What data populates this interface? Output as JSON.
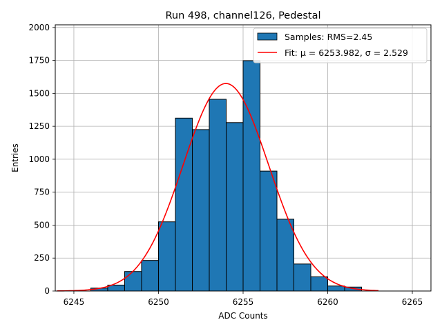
{
  "chart_data": {
    "type": "bar",
    "title": "Run 498, channel126, Pedestal",
    "xlabel": "ADC Counts",
    "ylabel": "Entries",
    "xlim": [
      6243.9,
      6266.1
    ],
    "ylim": [
      0,
      2020
    ],
    "xticks": [
      6245,
      6250,
      6255,
      6260,
      6265
    ],
    "yticks": [
      0,
      250,
      500,
      750,
      1000,
      1250,
      1500,
      1750,
      2000
    ],
    "grid": true,
    "legend_position": "top-right",
    "bin_width": 1,
    "series": [
      {
        "name": "Samples: RMS=2.45",
        "kind": "histogram",
        "color": "#1f77b4",
        "edge_color": "#000000",
        "bins": [
          6246,
          6247,
          6248,
          6249,
          6250,
          6251,
          6252,
          6253,
          6254,
          6255,
          6256,
          6257,
          6258,
          6259,
          6260,
          6261
        ],
        "values": [
          22,
          45,
          148,
          232,
          525,
          1312,
          1225,
          1455,
          1278,
          1748,
          910,
          545,
          205,
          108,
          38,
          30
        ]
      },
      {
        "name": "Fit: μ = 6253.982, σ = 2.529",
        "kind": "gaussian-fit",
        "color": "#ff0000",
        "mu": 6253.982,
        "sigma": 2.529,
        "amplitude": 1575,
        "x_range": [
          6244,
          6263
        ]
      }
    ]
  }
}
